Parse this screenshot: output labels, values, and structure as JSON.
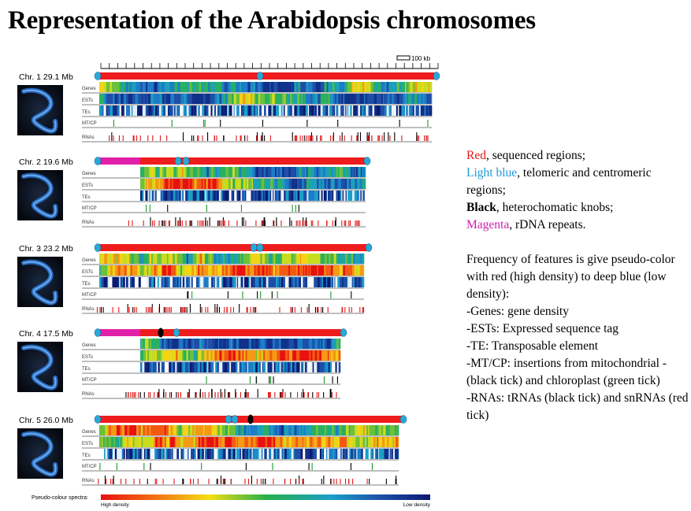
{
  "title": "Representation of the Arabidopsis chromosomes",
  "scale_bar": "100 kb",
  "track_labels": [
    "Genes",
    "ESTs",
    "TEs",
    "MT/CP",
    "RNAs"
  ],
  "chromosomes": [
    {
      "label": "Chr. 1  29.1 Mb",
      "length_mb": 29.1
    },
    {
      "label": "Chr. 2 19.6 Mb",
      "length_mb": 19.6
    },
    {
      "label": "Chr. 3  23.2 Mb",
      "length_mb": 23.2
    },
    {
      "label": "Chr. 4  17.5 Mb",
      "length_mb": 17.5
    },
    {
      "label": "Chr. 5  26.0 Mb",
      "length_mb": 26.0
    }
  ],
  "spectrum": {
    "label": "Pseudo-colour spectra:",
    "high": "High density",
    "low": "Low density"
  },
  "colors": {
    "sequenced": "#ee1c1c",
    "telomere_centromere": "#29a8d8",
    "heterochromatic_knob": "#000000",
    "rdna": "#e020a8"
  },
  "legend": {
    "red_word": "Red",
    "red_rest": ", sequenced regions;",
    "lightblue_word": "Light blue",
    "lightblue_rest": ", telomeric and centromeric regions;",
    "black_word": "Black",
    "black_rest": ", heterochomatic knobs;",
    "magenta_word": "Magenta",
    "magenta_rest": ", rDNA repeats.",
    "freq_lines": [
      "Frequency of features is give pseudo-color with red (high density) to deep blue (low density):",
      "-Genes: gene density",
      "-ESTs: Expressed sequence tag",
      "-TE: Transposable element",
      "-MT/CP: insertions from mitochondrial -(black tick) and chloroplast (green tick)",
      "-RNAs: tRNAs (black tick) and snRNAs (red tick)"
    ]
  }
}
